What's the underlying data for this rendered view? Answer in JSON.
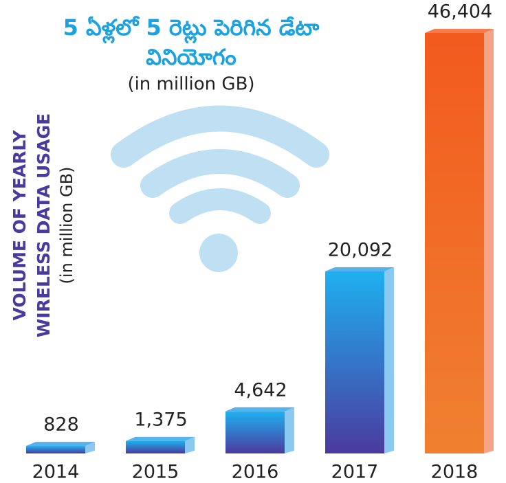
{
  "chart_data": {
    "type": "bar",
    "title": [
      "5 ఏళ్లలో 5 రెట్లు పెరిగిన డేటా",
      "వినియోగం"
    ],
    "subtitle": "(in million GB)",
    "y_label": [
      "VOLUME OF YEARLY",
      "WIRELESS DATA USAGE",
      "(in million GB)"
    ],
    "categories": [
      "2014",
      "2015",
      "2016",
      "2017",
      "2018"
    ],
    "values": [
      828,
      1375,
      4642,
      20092,
      46404
    ],
    "value_labels": [
      "828",
      "1,375",
      "4,642",
      "20,092",
      "46,404"
    ],
    "colors": [
      "#2a9fe6",
      "#2a9fe6",
      "#2a9fe6",
      "#2a9fe6",
      "#f15a22"
    ]
  }
}
